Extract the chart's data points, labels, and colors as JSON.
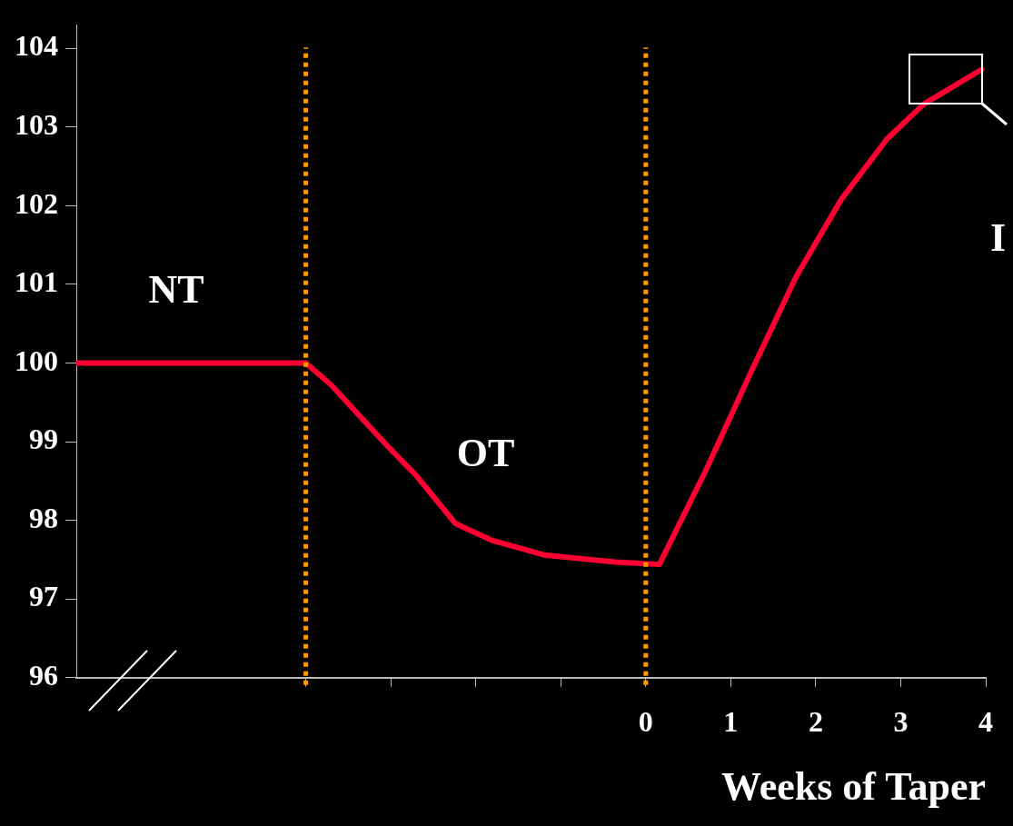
{
  "chart_data": {
    "type": "line",
    "xlabel": "Weeks of Taper",
    "x": [
      -6.7,
      -4,
      -3.7,
      -3.3,
      -3.0,
      -2.7,
      -2.24,
      -1.82,
      -1.2,
      -0.36,
      0.16,
      0.7,
      1.24,
      1.77,
      2.3,
      2.84,
      3.27,
      3.95
    ],
    "series": [
      {
        "color": "#ff0033",
        "values": [
          100,
          100,
          99.72,
          99.25,
          98.9,
          98.57,
          97.96,
          97.75,
          97.56,
          97.47,
          97.44,
          98.62,
          99.89,
          101.1,
          102.08,
          102.85,
          103.29,
          103.73
        ]
      }
    ],
    "xlim": [
      -6.7,
      4
    ],
    "ylim": [
      96,
      104.3
    ],
    "xticks": [
      {
        "value": -4,
        "label": null
      },
      {
        "value": -3,
        "label": null
      },
      {
        "value": -2,
        "label": null
      },
      {
        "value": -1,
        "label": null
      },
      0,
      1,
      2,
      3,
      4
    ],
    "yticks": [
      96,
      97,
      98,
      99,
      100,
      101,
      102,
      103,
      104
    ],
    "ref_lines": [
      {
        "axis": "x",
        "value": -4,
        "color": "#ff9900",
        "line_style": "dotted"
      },
      {
        "axis": "x",
        "value": 0,
        "color": "#ff9900",
        "line_style": "dotted"
      }
    ],
    "annotations": [
      "NT",
      "OT",
      "I"
    ],
    "grid": false,
    "legend": false,
    "marker": "none",
    "line_style": "solid"
  }
}
